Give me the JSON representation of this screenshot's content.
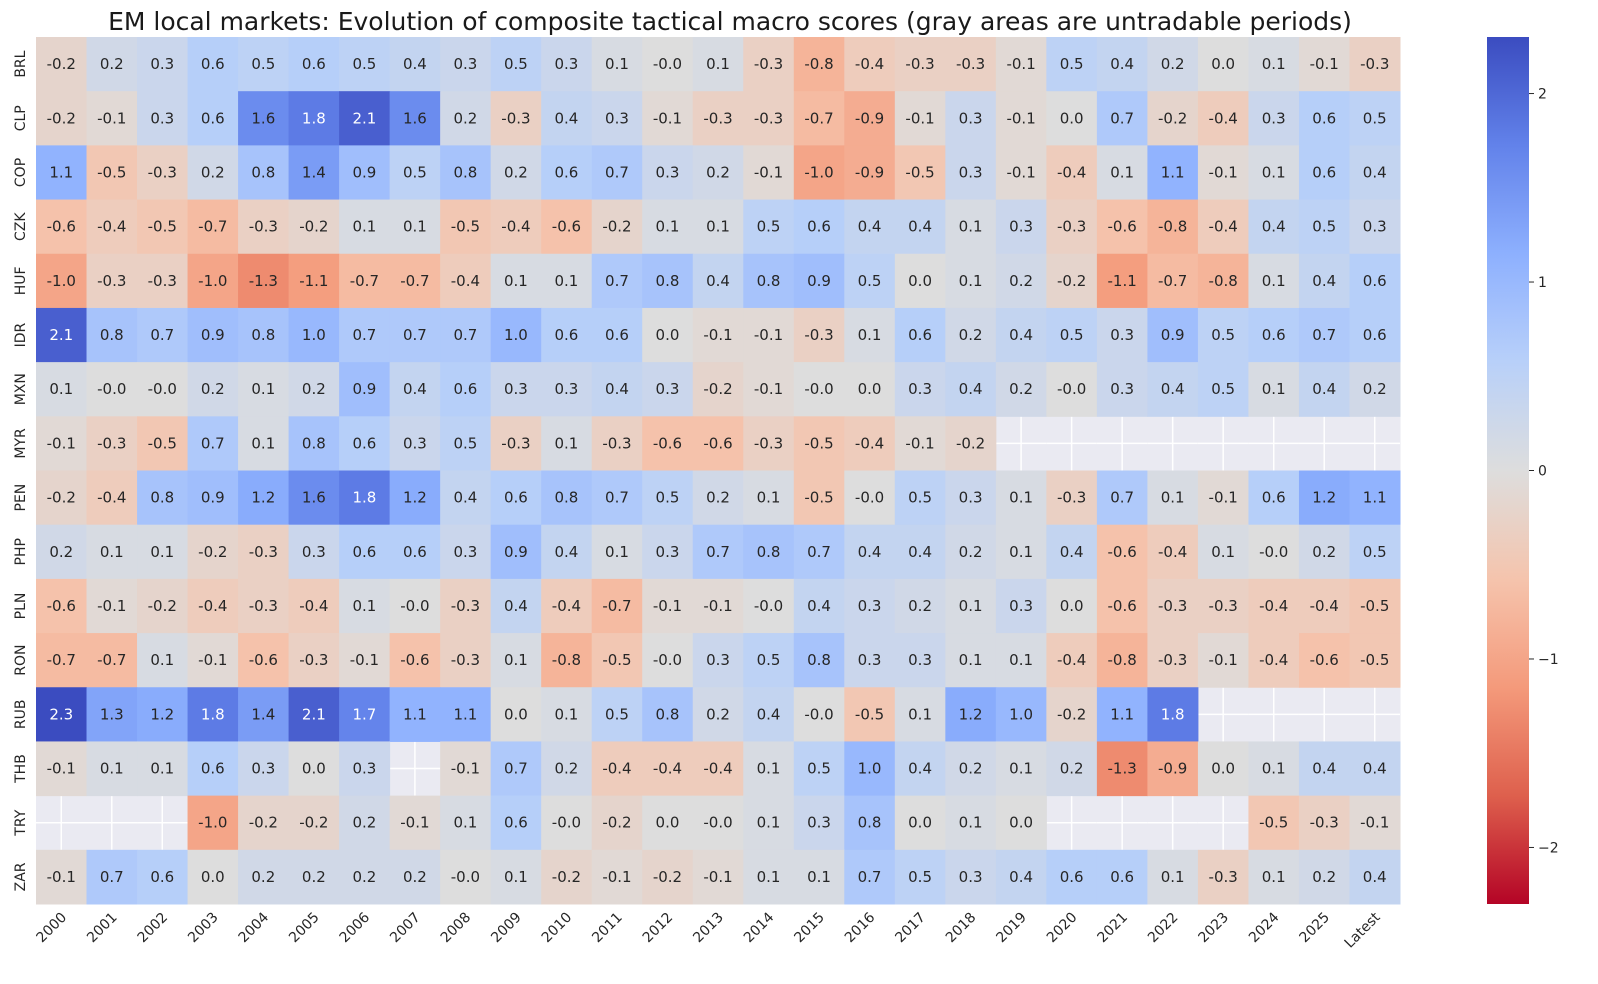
{
  "chart_data": {
    "type": "heatmap",
    "title": "EM local markets: Evolution of composite tactical macro scores (gray areas are untradable periods)",
    "xlabel": "",
    "ylabel": "",
    "x_labels": [
      "2000",
      "2001",
      "2002",
      "2003",
      "2004",
      "2005",
      "2006",
      "2007",
      "2008",
      "2009",
      "2010",
      "2011",
      "2012",
      "2013",
      "2014",
      "2015",
      "2016",
      "2017",
      "2018",
      "2019",
      "2020",
      "2021",
      "2022",
      "2023",
      "2024",
      "2025",
      "Latest"
    ],
    "y_labels": [
      "BRL",
      "CLP",
      "COP",
      "CZK",
      "HUF",
      "IDR",
      "MXN",
      "MYR",
      "PEN",
      "PHP",
      "PLN",
      "RON",
      "RUB",
      "THB",
      "TRY",
      "ZAR"
    ],
    "values": [
      [
        "-0.2",
        "0.2",
        "0.3",
        "0.6",
        "0.5",
        "0.6",
        "0.5",
        "0.4",
        "0.3",
        "0.5",
        "0.3",
        "0.1",
        "-0.0",
        "0.1",
        "-0.3",
        "-0.8",
        "-0.4",
        "-0.3",
        "-0.3",
        "-0.1",
        "0.5",
        "0.4",
        "0.2",
        "0.0",
        "0.1",
        "-0.1",
        "-0.3"
      ],
      [
        "-0.2",
        "-0.1",
        "0.3",
        "0.6",
        "1.6",
        "1.8",
        "2.1",
        "1.6",
        "0.2",
        "-0.3",
        "0.4",
        "0.3",
        "-0.1",
        "-0.3",
        "-0.3",
        "-0.7",
        "-0.9",
        "-0.1",
        "0.3",
        "-0.1",
        "0.0",
        "0.7",
        "-0.2",
        "-0.4",
        "0.3",
        "0.6",
        "0.5"
      ],
      [
        "1.1",
        "-0.5",
        "-0.3",
        "0.2",
        "0.8",
        "1.4",
        "0.9",
        "0.5",
        "0.8",
        "0.2",
        "0.6",
        "0.7",
        "0.3",
        "0.2",
        "-0.1",
        "-1.0",
        "-0.9",
        "-0.5",
        "0.3",
        "-0.1",
        "-0.4",
        "0.1",
        "1.1",
        "-0.1",
        "0.1",
        "0.6",
        "0.4"
      ],
      [
        "-0.6",
        "-0.4",
        "-0.5",
        "-0.7",
        "-0.3",
        "-0.2",
        "0.1",
        "0.1",
        "-0.5",
        "-0.4",
        "-0.6",
        "-0.2",
        "0.1",
        "0.1",
        "0.5",
        "0.6",
        "0.4",
        "0.4",
        "0.1",
        "0.3",
        "-0.3",
        "-0.6",
        "-0.8",
        "-0.4",
        "0.4",
        "0.5",
        "0.3"
      ],
      [
        "-1.0",
        "-0.3",
        "-0.3",
        "-1.0",
        "-1.3",
        "-1.1",
        "-0.7",
        "-0.7",
        "-0.4",
        "0.1",
        "0.1",
        "0.7",
        "0.8",
        "0.4",
        "0.8",
        "0.9",
        "0.5",
        "0.0",
        "0.1",
        "0.2",
        "-0.2",
        "-1.1",
        "-0.7",
        "-0.8",
        "0.1",
        "0.4",
        "0.6"
      ],
      [
        "2.1",
        "0.8",
        "0.7",
        "0.9",
        "0.8",
        "1.0",
        "0.7",
        "0.7",
        "0.7",
        "1.0",
        "0.6",
        "0.6",
        "0.0",
        "-0.1",
        "-0.1",
        "-0.3",
        "0.1",
        "0.6",
        "0.2",
        "0.4",
        "0.5",
        "0.3",
        "0.9",
        "0.5",
        "0.6",
        "0.7",
        "0.6"
      ],
      [
        "0.1",
        "-0.0",
        "-0.0",
        "0.2",
        "0.1",
        "0.2",
        "0.9",
        "0.4",
        "0.6",
        "0.3",
        "0.3",
        "0.4",
        "0.3",
        "-0.2",
        "-0.1",
        "-0.0",
        "0.0",
        "0.3",
        "0.4",
        "0.2",
        "-0.0",
        "0.3",
        "0.4",
        "0.5",
        "0.1",
        "0.4",
        "0.2"
      ],
      [
        "-0.1",
        "-0.3",
        "-0.5",
        "0.7",
        "0.1",
        "0.8",
        "0.6",
        "0.3",
        "0.5",
        "-0.3",
        "0.1",
        "-0.3",
        "-0.6",
        "-0.6",
        "-0.3",
        "-0.5",
        "-0.4",
        "-0.1",
        "-0.2",
        null,
        null,
        null,
        null,
        null,
        null,
        null,
        null
      ],
      [
        "-0.2",
        "-0.4",
        "0.8",
        "0.9",
        "1.2",
        "1.6",
        "1.8",
        "1.2",
        "0.4",
        "0.6",
        "0.8",
        "0.7",
        "0.5",
        "0.2",
        "0.1",
        "-0.5",
        "-0.0",
        "0.5",
        "0.3",
        "0.1",
        "-0.3",
        "0.7",
        "0.1",
        "-0.1",
        "0.6",
        "1.2",
        "1.1"
      ],
      [
        "0.2",
        "0.1",
        "0.1",
        "-0.2",
        "-0.3",
        "0.3",
        "0.6",
        "0.6",
        "0.3",
        "0.9",
        "0.4",
        "0.1",
        "0.3",
        "0.7",
        "0.8",
        "0.7",
        "0.4",
        "0.4",
        "0.2",
        "0.1",
        "0.4",
        "-0.6",
        "-0.4",
        "0.1",
        "-0.0",
        "0.2",
        "0.5"
      ],
      [
        "-0.6",
        "-0.1",
        "-0.2",
        "-0.4",
        "-0.3",
        "-0.4",
        "0.1",
        "-0.0",
        "-0.3",
        "0.4",
        "-0.4",
        "-0.7",
        "-0.1",
        "-0.1",
        "-0.0",
        "0.4",
        "0.3",
        "0.2",
        "0.1",
        "0.3",
        "0.0",
        "-0.6",
        "-0.3",
        "-0.3",
        "-0.4",
        "-0.4",
        "-0.5"
      ],
      [
        "-0.7",
        "-0.7",
        "0.1",
        "-0.1",
        "-0.6",
        "-0.3",
        "-0.1",
        "-0.6",
        "-0.3",
        "0.1",
        "-0.8",
        "-0.5",
        "-0.0",
        "0.3",
        "0.5",
        "0.8",
        "0.3",
        "0.3",
        "0.1",
        "0.1",
        "-0.4",
        "-0.8",
        "-0.3",
        "-0.1",
        "-0.4",
        "-0.6",
        "-0.5"
      ],
      [
        "2.3",
        "1.3",
        "1.2",
        "1.8",
        "1.4",
        "2.1",
        "1.7",
        "1.1",
        "1.1",
        "0.0",
        "0.1",
        "0.5",
        "0.8",
        "0.2",
        "0.4",
        "-0.0",
        "-0.5",
        "0.1",
        "1.2",
        "1.0",
        "-0.2",
        "1.1",
        "1.8",
        null,
        null,
        null,
        null
      ],
      [
        "-0.1",
        "0.1",
        "0.1",
        "0.6",
        "0.3",
        "0.0",
        "0.3",
        null,
        "-0.1",
        "0.7",
        "0.2",
        "-0.4",
        "-0.4",
        "-0.4",
        "0.1",
        "0.5",
        "1.0",
        "0.4",
        "0.2",
        "0.1",
        "0.2",
        "-1.3",
        "-0.9",
        "0.0",
        "0.1",
        "0.4",
        "0.4"
      ],
      [
        null,
        null,
        null,
        "-1.0",
        "-0.2",
        "-0.2",
        "0.2",
        "-0.1",
        "0.1",
        "0.6",
        "-0.0",
        "-0.2",
        "0.0",
        "-0.0",
        "0.1",
        "0.3",
        "0.8",
        "0.0",
        "0.1",
        "0.0",
        null,
        null,
        null,
        null,
        "-0.5",
        "-0.3",
        "-0.1"
      ],
      [
        "-0.1",
        "0.7",
        "0.6",
        "0.0",
        "0.2",
        "0.2",
        "0.2",
        "0.2",
        "-0.0",
        "0.1",
        "-0.2",
        "-0.1",
        "-0.2",
        "-0.1",
        "0.1",
        "0.1",
        "0.7",
        "0.5",
        "0.3",
        "0.4",
        "0.6",
        "0.6",
        "0.1",
        "-0.3",
        "0.1",
        "0.2",
        "0.4"
      ]
    ],
    "color_range": [
      -2.3,
      2.3
    ],
    "colormap": "coolwarm_r",
    "colorbar_ticks": [
      "2",
      "1",
      "0",
      "−1",
      "−2"
    ],
    "missing_color": "#eaeaf2",
    "grid": true,
    "legend": "colorbar-right"
  }
}
